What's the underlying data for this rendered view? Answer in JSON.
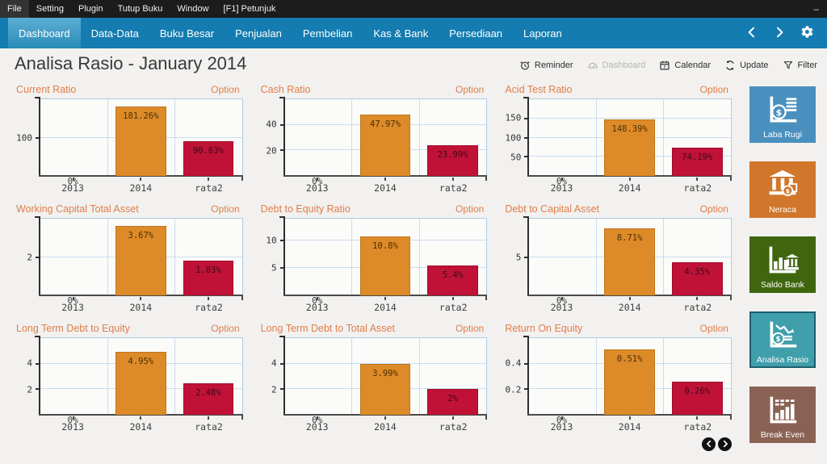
{
  "menubar": {
    "items": [
      "File",
      "Setting",
      "Plugin",
      "Tutup Buku",
      "Window",
      "[F1] Petunjuk"
    ],
    "minimize_label": "–",
    "minimize_icon": "minimize-icon"
  },
  "nav": {
    "tabs": [
      {
        "label": "Dashboard",
        "active": true
      },
      {
        "label": "Data-Data",
        "active": false
      },
      {
        "label": "Buku Besar",
        "active": false
      },
      {
        "label": "Penjualan",
        "active": false
      },
      {
        "label": "Pembelian",
        "active": false
      },
      {
        "label": "Kas & Bank",
        "active": false
      },
      {
        "label": "Persediaan",
        "active": false
      },
      {
        "label": "Laporan",
        "active": false
      }
    ],
    "prev_icon": "chevron-left-icon",
    "next_icon": "chevron-right-icon",
    "settings_icon": "gear-icon",
    "bar_color": "#147cb0"
  },
  "header": {
    "title": "Analisa Rasio - January 2014",
    "actions": [
      {
        "label": "Reminder",
        "icon": "reminder-alarm-icon",
        "disabled": false
      },
      {
        "label": "Dashboard",
        "icon": "dashboard-gauge-icon",
        "disabled": true
      },
      {
        "label": "Calendar",
        "icon": "calendar-icon",
        "disabled": false
      },
      {
        "label": "Update",
        "icon": "update-refresh-icon",
        "disabled": false
      },
      {
        "label": "Filter",
        "icon": "filter-funnel-icon",
        "disabled": false
      }
    ]
  },
  "charts": {
    "option_label": "Option",
    "title_color": "#e17d4a",
    "bar_color_2014": "#dd8a28",
    "bar_color_rata2": "#bf1236"
  },
  "chart_data": [
    {
      "type": "bar",
      "title": "Current Ratio",
      "categories": [
        "2013",
        "2014",
        "rata2"
      ],
      "values": [
        0,
        181.26,
        90.63
      ],
      "labels": [
        "0%",
        "181.26%",
        "90.63%"
      ],
      "yticks": [
        100
      ],
      "ylim": [
        0,
        200
      ],
      "grid": true
    },
    {
      "type": "bar",
      "title": "Cash Ratio",
      "categories": [
        "2013",
        "2014",
        "rata2"
      ],
      "values": [
        0,
        47.97,
        23.99
      ],
      "labels": [
        "0%",
        "47.97%",
        "23.99%"
      ],
      "yticks": [
        20,
        40
      ],
      "ylim": [
        0,
        60
      ],
      "grid": true
    },
    {
      "type": "bar",
      "title": "Acid Test Ratio",
      "categories": [
        "2013",
        "2014",
        "rata2"
      ],
      "values": [
        0,
        148.39,
        74.19
      ],
      "labels": [
        "0%",
        "148.39%",
        "74.19%"
      ],
      "yticks": [
        50,
        100,
        150
      ],
      "ylim": [
        0,
        200
      ],
      "grid": true
    },
    {
      "type": "bar",
      "title": "Working Capital Total Asset",
      "categories": [
        "2013",
        "2014",
        "rata2"
      ],
      "values": [
        0,
        3.67,
        1.83
      ],
      "labels": [
        "0%",
        "3.67%",
        "1.83%"
      ],
      "yticks": [
        2
      ],
      "ylim": [
        0,
        4.05
      ],
      "grid": true
    },
    {
      "type": "bar",
      "title": "Debt to Equity Ratio",
      "categories": [
        "2013",
        "2014",
        "rata2"
      ],
      "values": [
        0,
        10.8,
        5.4
      ],
      "labels": [
        "0%",
        "10.8%",
        "5.4%"
      ],
      "yticks": [
        5,
        10
      ],
      "ylim": [
        0,
        14
      ],
      "grid": true
    },
    {
      "type": "bar",
      "title": "Debt to Capital Asset",
      "categories": [
        "2013",
        "2014",
        "rata2"
      ],
      "values": [
        0,
        8.71,
        4.35
      ],
      "labels": [
        "0%",
        "8.71%",
        "4.35%"
      ],
      "yticks": [
        5
      ],
      "ylim": [
        0,
        10
      ],
      "grid": true
    },
    {
      "type": "bar",
      "title": "Long Term Debt to Equity",
      "categories": [
        "2013",
        "2014",
        "rata2"
      ],
      "values": [
        0,
        4.95,
        2.48
      ],
      "labels": [
        "0%",
        "4.95%",
        "2.48%"
      ],
      "yticks": [
        2,
        4
      ],
      "ylim": [
        0,
        6
      ],
      "grid": true
    },
    {
      "type": "bar",
      "title": "Long Term Debt to Total Asset",
      "categories": [
        "2013",
        "2014",
        "rata2"
      ],
      "values": [
        0,
        3.99,
        2
      ],
      "labels": [
        "0%",
        "3.99%",
        "2%"
      ],
      "yticks": [
        2,
        4
      ],
      "ylim": [
        0,
        6
      ],
      "grid": true
    },
    {
      "type": "bar",
      "title": "Return On Equity",
      "categories": [
        "2013",
        "2014",
        "rata2"
      ],
      "values": [
        0,
        0.51,
        0.26
      ],
      "labels": [
        "0%",
        "0.51%",
        "0.26%"
      ],
      "yticks": [
        0.2,
        0.4
      ],
      "ylim": [
        0,
        0.6
      ],
      "grid": true
    }
  ],
  "sidebar": {
    "tiles": [
      {
        "label": "Laba Rugi",
        "color": "#4a90bf",
        "icon": "profit-loss-chart-icon",
        "selected": false
      },
      {
        "label": "Neraca",
        "color": "#d0772b",
        "icon": "balance-sheet-bank-icon",
        "selected": false
      },
      {
        "label": "Saldo Bank",
        "color": "#3f660e",
        "icon": "bank-balance-chart-icon",
        "selected": false
      },
      {
        "label": "Analisa Rasio",
        "color": "#3f9fab",
        "icon": "ratio-analysis-chart-icon",
        "selected": true
      },
      {
        "label": "Break Even",
        "color": "#8a6254",
        "icon": "break-even-chart-icon",
        "selected": false
      }
    ]
  },
  "pager": {
    "prev_icon": "chevron-left-circle-icon",
    "next_icon": "chevron-right-circle-icon"
  }
}
